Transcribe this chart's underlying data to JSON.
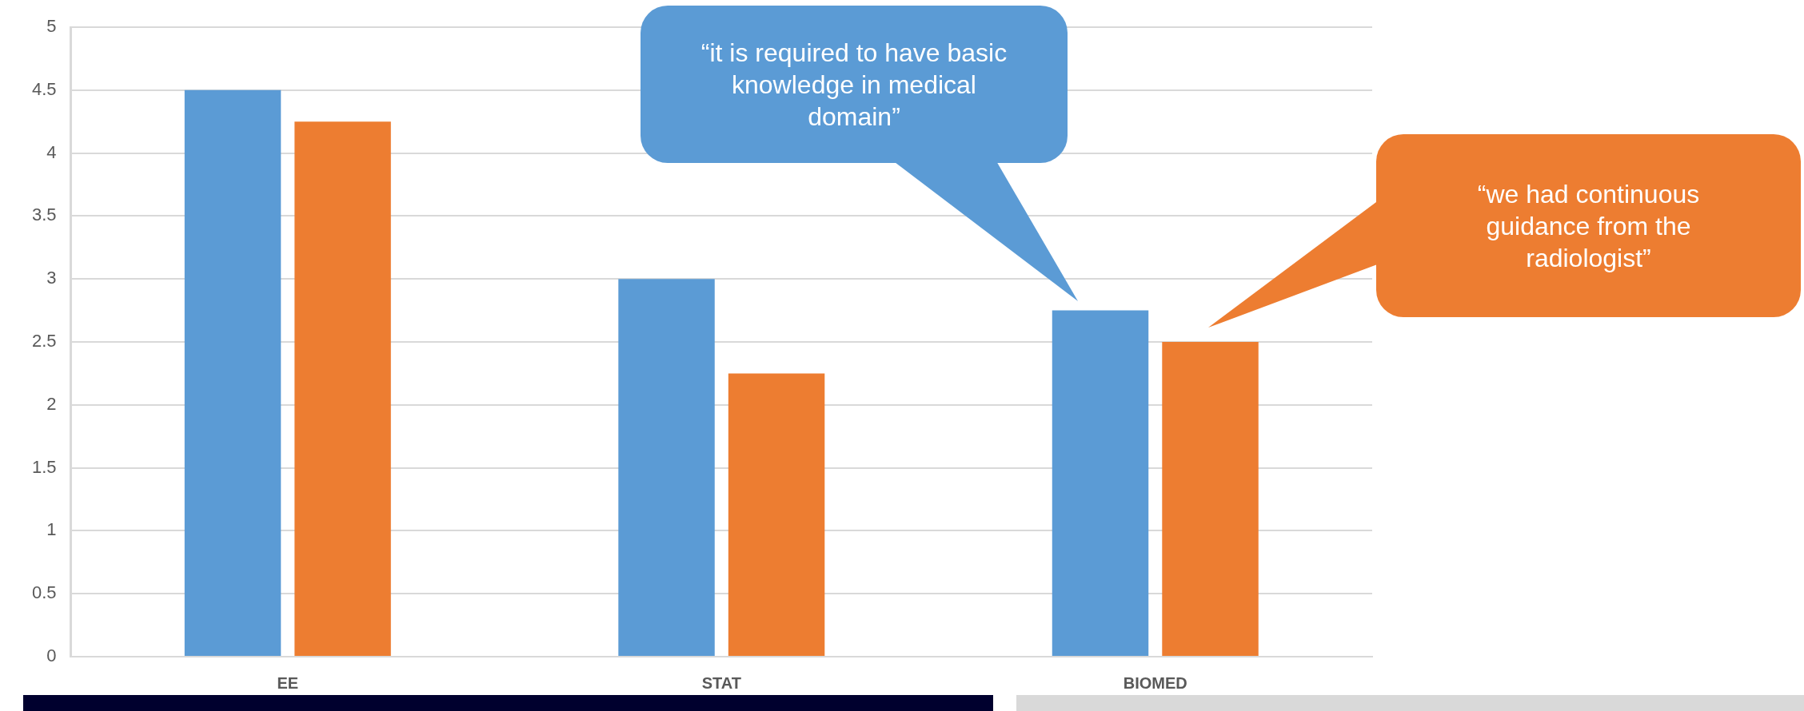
{
  "chart_data": {
    "type": "bar",
    "categories": [
      "EE",
      "STAT",
      "BIOMED"
    ],
    "series": [
      {
        "color": "#5b9bd5",
        "values": [
          4.5,
          3,
          2.75
        ]
      },
      {
        "color": "#ed7d31",
        "values": [
          4.25,
          2.25,
          2.5
        ]
      }
    ],
    "ylim": [
      0,
      5
    ],
    "yticks": [
      0,
      0.5,
      1,
      1.5,
      2,
      2.5,
      3,
      3.5,
      4,
      4.5,
      5
    ],
    "grid": "y",
    "legend": false,
    "annotations": [
      "“it is required to have basic knowledge in medical domain”",
      "“we had continuous guidance from the radiologist”"
    ]
  }
}
